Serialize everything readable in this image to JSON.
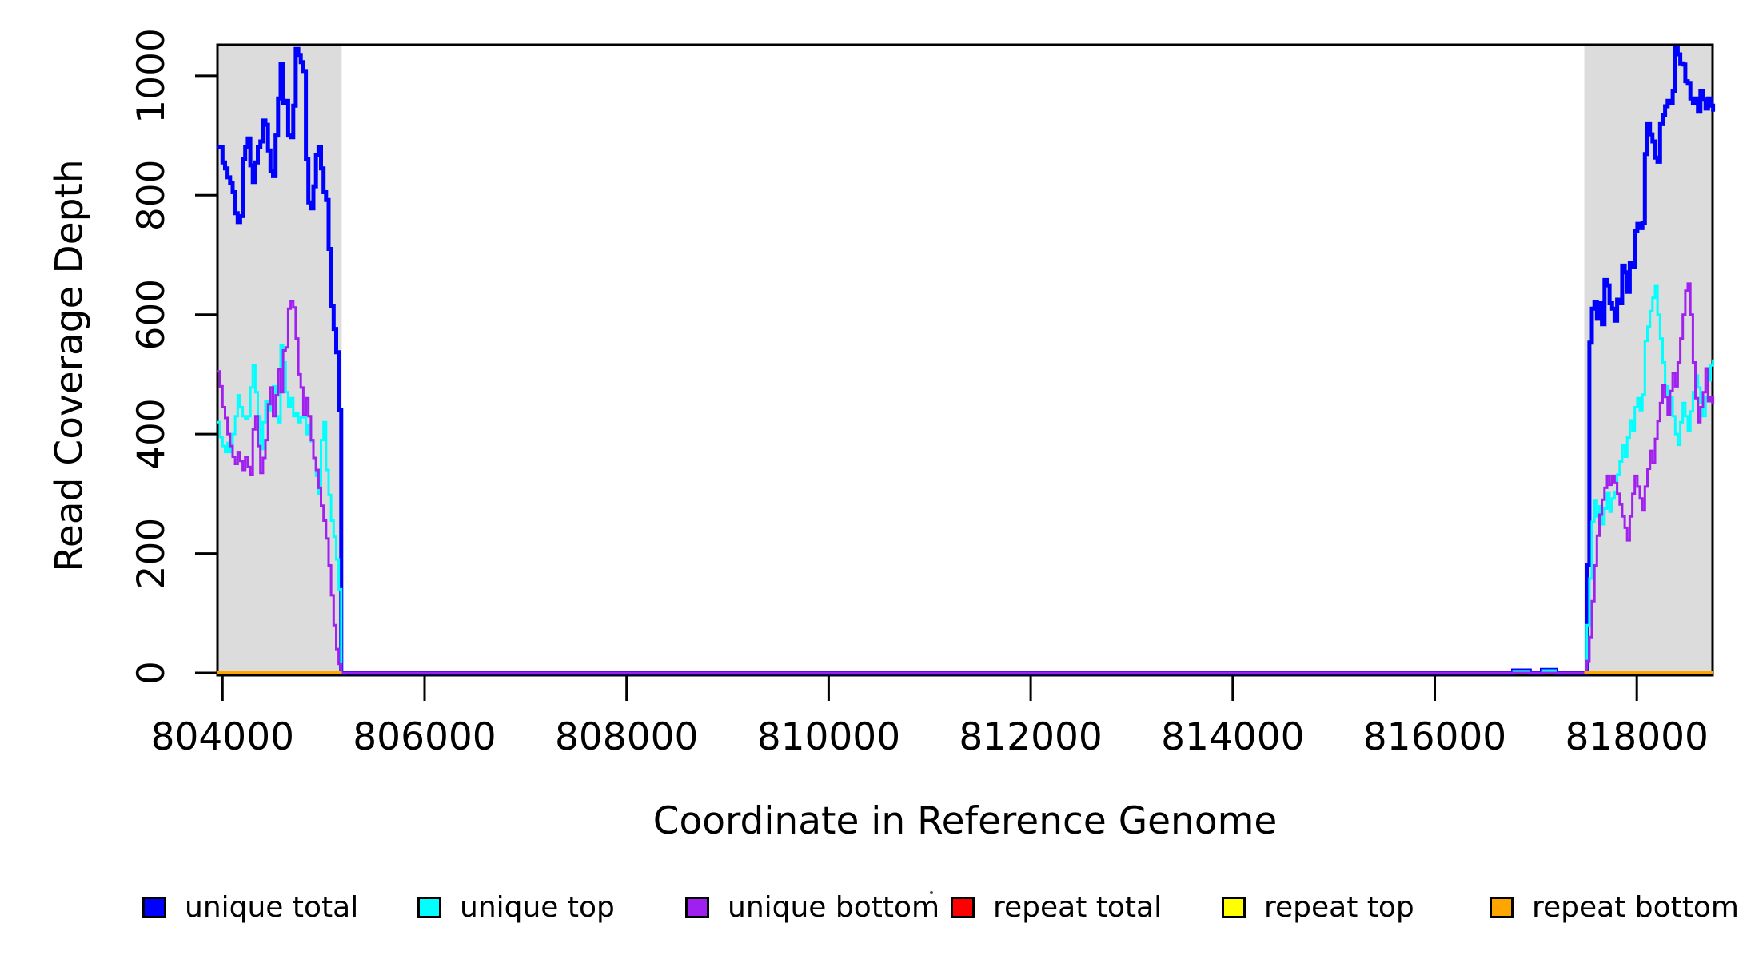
{
  "chart_data": {
    "type": "line",
    "subtype": "step-coverage",
    "title": "",
    "xlabel": "Coordinate in Reference Genome",
    "ylabel": "Read Coverage Depth",
    "xlim": [
      803950,
      818750
    ],
    "ylim": [
      0,
      1052
    ],
    "x_ticks": [
      804000,
      806000,
      808000,
      810000,
      812000,
      814000,
      816000,
      818000
    ],
    "y_ticks": [
      0,
      200,
      400,
      600,
      800,
      1000
    ],
    "grid": false,
    "legend_position": "bottom",
    "region_color": "#DCDCDC",
    "axis_color": "#000000",
    "highlight_regions": [
      {
        "x0": 803950,
        "x1": 805180
      },
      {
        "x0": 817480,
        "x1": 818750
      }
    ],
    "series": [
      {
        "name": "unique total",
        "color": "#0000FF",
        "lwd": 5,
        "paths": [
          [
            {
              "x0": 803950,
              "dx": 25,
              "values": [
                880,
                880,
                855,
                845,
                830,
                820,
                805,
                770,
                755,
                765,
                860,
                880,
                895,
                850,
                822,
                855,
                880,
                890,
                925,
                918,
                875,
                840,
                832,
                900,
                962,
                1020,
                955,
                958,
                900,
                897,
                950,
                1045,
                1035,
                1023,
                1008,
                860,
                788,
                778,
                815,
                867,
                880,
                845,
                805,
                792,
                710,
                615,
                576,
                537,
                440,
                150
              ]
            },
            {
              "x0": 805175,
              "x1": 816775,
              "v": 0
            },
            {
              "x0": 816775,
              "x1": 816940,
              "v": 4
            },
            {
              "x0": 816940,
              "x1": 817060,
              "v": 0
            },
            {
              "x0": 817060,
              "x1": 817200,
              "v": 5
            },
            {
              "x0": 817200,
              "x1": 817480,
              "v": 0
            },
            {
              "x0": 817480,
              "dx": 25,
              "values": [
                0,
                180,
                553,
                610,
                621,
                593,
                619,
                584,
                658,
                649,
                619,
                610,
                590,
                625,
                619,
                682,
                671,
                638,
                687,
                680,
                740,
                752,
                745,
                754,
                869,
                919,
                902,
                890,
                863,
                856,
                919,
                934,
                949,
                958,
                954,
                975,
                1047,
                1036,
                1021,
                1019,
                991,
                988,
                962,
                954,
                962,
                940,
                975,
                960,
                945,
                962,
                950,
                940
              ]
            }
          ]
        ]
      },
      {
        "name": "unique top",
        "color": "#00FFFF",
        "lwd": 3,
        "paths": [
          [
            {
              "x0": 803950,
              "dx": 25,
              "values": [
                420,
                395,
                380,
                370,
                385,
                370,
                400,
                430,
                465,
                445,
                430,
                425,
                430,
                478,
                515,
                470,
                430,
                375,
                420,
                455,
                440,
                470,
                480,
                430,
                420,
                549,
                520,
                470,
                445,
                460,
                430,
                435,
                420,
                428,
                430,
                400,
                415,
                388,
                360,
                330,
                300,
                390,
                420,
                340,
                298,
                255,
                228,
                190,
                140,
                40
              ]
            },
            {
              "x0": 805175,
              "x1": 816780,
              "v": 0
            },
            {
              "x0": 816780,
              "x1": 816935,
              "v": 3
            },
            {
              "x0": 816935,
              "x1": 817065,
              "v": 0
            },
            {
              "x0": 817065,
              "x1": 817195,
              "v": 4
            },
            {
              "x0": 817195,
              "x1": 817480,
              "v": 0
            },
            {
              "x0": 817480,
              "dx": 25,
              "values": [
                0,
                80,
                158,
                253,
                288,
                262,
                279,
                249,
                275,
                301,
                270,
                292,
                303,
                332,
                354,
                381,
                362,
                394,
                423,
                406,
                445,
                460,
                440,
                466,
                556,
                580,
                606,
                628,
                649,
                600,
                560,
                520,
                480,
                445,
                462,
                430,
                400,
                382,
                420,
                452,
                430,
                405,
                438,
                470,
                498,
                478,
                452,
                430,
                462,
                490,
                515,
                525
              ]
            }
          ]
        ]
      },
      {
        "name": "unique bottom",
        "color": "#A020F0",
        "lwd": 3,
        "paths": [
          [
            {
              "x0": 803950,
              "dx": 25,
              "values": [
                505,
                480,
                445,
                427,
                400,
                380,
                362,
                350,
                370,
                355,
                340,
                362,
                345,
                332,
                408,
                430,
                380,
                335,
                360,
                390,
                450,
                478,
                430,
                465,
                508,
                470,
                540,
                545,
                610,
                622,
                612,
                560,
                500,
                478,
                432,
                460,
                430,
                390,
                360,
                340,
                310,
                280,
                255,
                225,
                180,
                130,
                80,
                40,
                15,
                5
              ]
            },
            {
              "x0": 805175,
              "x1": 817480,
              "v": 0
            },
            {
              "x0": 817480,
              "dx": 25,
              "values": [
                0,
                20,
                60,
                120,
                180,
                230,
                265,
                290,
                310,
                330,
                315,
                330,
                318,
                300,
                282,
                262,
                243,
                222,
                262,
                300,
                330,
                312,
                292,
                272,
                312,
                342,
                372,
                352,
                392,
                422,
                452,
                482,
                462,
                432,
                472,
                502,
                480,
                520,
                560,
                600,
                640,
                652,
                600,
                520,
                460,
                420,
                445,
                470,
                510,
                455,
                462,
                450
              ]
            }
          ]
        ]
      },
      {
        "name": "repeat total",
        "color": "#FF0000",
        "lwd": 3,
        "paths": [
          [
            {
              "x0": 803950,
              "x1": 805180,
              "v": 0
            }
          ],
          [
            {
              "x0": 817480,
              "x1": 818750,
              "v": 0
            }
          ]
        ]
      },
      {
        "name": "repeat top",
        "color": "#FFFF00",
        "lwd": 3,
        "paths": [
          [
            {
              "x0": 803950,
              "x1": 805180,
              "v": 0
            }
          ],
          [
            {
              "x0": 817480,
              "x1": 818750,
              "v": 0
            }
          ]
        ]
      },
      {
        "name": "repeat bottom",
        "color": "#FFA500",
        "lwd": 4,
        "paths": [
          [
            {
              "x0": 803950,
              "x1": 805180,
              "v": 0
            }
          ],
          [
            {
              "x0": 817480,
              "x1": 818750,
              "v": 0
            }
          ]
        ]
      }
    ]
  },
  "legend": {
    "items": [
      {
        "label": "unique total",
        "color": "#0000FF"
      },
      {
        "label": "unique top",
        "color": "#00FFFF"
      },
      {
        "label": "unique bottom",
        "color": "#A020F0"
      },
      {
        "label": "repeat total",
        "color": "#FF0000"
      },
      {
        "label": "repeat top",
        "color": "#FFFF00"
      },
      {
        "label": "repeat bottom",
        "color": "#FFA500"
      }
    ]
  }
}
